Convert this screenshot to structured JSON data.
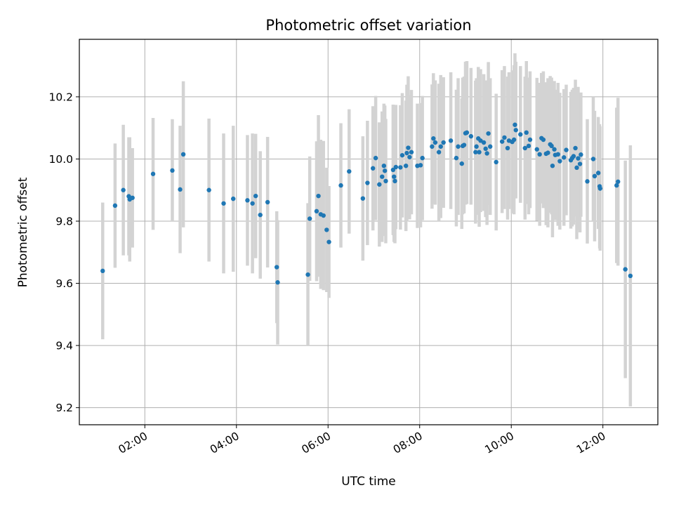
{
  "chart_data": {
    "type": "scatter",
    "title": "Photometric offset variation",
    "xlabel": "UTC time",
    "ylabel": "Photometric offset",
    "x_unit": "hours (UTC)",
    "xlim": [
      0.57,
      13.2
    ],
    "ylim": [
      9.145,
      10.385
    ],
    "xticks": [
      {
        "value": 2,
        "label": "02:00"
      },
      {
        "value": 4,
        "label": "04:00"
      },
      {
        "value": 6,
        "label": "06:00"
      },
      {
        "value": 8,
        "label": "08:00"
      },
      {
        "value": 10,
        "label": "10:00"
      },
      {
        "value": 12,
        "label": "12:00"
      }
    ],
    "yticks": [
      {
        "value": 9.2,
        "label": "9.2"
      },
      {
        "value": 9.4,
        "label": "9.4"
      },
      {
        "value": 9.6,
        "label": "9.6"
      },
      {
        "value": 9.8,
        "label": "9.8"
      },
      {
        "value": 10.0,
        "label": "10.0"
      },
      {
        "value": 10.2,
        "label": "10.2"
      }
    ],
    "grid": true,
    "colors": {
      "marker": "#1f77b4",
      "errorbar": "#d3d3d3",
      "grid": "#b0b0b0"
    },
    "points": [
      [
        1.08,
        9.64,
        0.22
      ],
      [
        1.35,
        9.85,
        0.2
      ],
      [
        1.53,
        9.9,
        0.21
      ],
      [
        1.65,
        9.88,
        0.19
      ],
      [
        1.67,
        9.87,
        0.2
      ],
      [
        1.73,
        9.875,
        0.16
      ],
      [
        2.18,
        9.952,
        0.18
      ],
      [
        2.6,
        9.963,
        0.165
      ],
      [
        2.77,
        9.902,
        0.205
      ],
      [
        2.84,
        10.015,
        0.235
      ],
      [
        3.4,
        9.9,
        0.23
      ],
      [
        3.72,
        9.857,
        0.225
      ],
      [
        3.93,
        9.872,
        0.235
      ],
      [
        4.24,
        9.867,
        0.21
      ],
      [
        4.35,
        9.857,
        0.225
      ],
      [
        4.42,
        9.881,
        0.2
      ],
      [
        4.52,
        9.82,
        0.205
      ],
      [
        4.68,
        9.861,
        0.21
      ],
      [
        4.88,
        9.652,
        0.18
      ],
      [
        4.9,
        9.603,
        0.2
      ],
      [
        5.56,
        9.628,
        0.23
      ],
      [
        5.6,
        9.808,
        0.2
      ],
      [
        5.75,
        9.832,
        0.225
      ],
      [
        5.79,
        9.881,
        0.26
      ],
      [
        5.84,
        9.822,
        0.24
      ],
      [
        5.9,
        9.818,
        0.24
      ],
      [
        5.97,
        9.772,
        0.2
      ],
      [
        6.02,
        9.733,
        0.18
      ],
      [
        6.28,
        9.915,
        0.2
      ],
      [
        6.46,
        9.96,
        0.2
      ],
      [
        6.76,
        9.873,
        0.2
      ],
      [
        6.86,
        9.923,
        0.2
      ],
      [
        6.98,
        9.97,
        0.2
      ],
      [
        7.04,
        10.003,
        0.2
      ],
      [
        7.12,
        9.918,
        0.2
      ],
      [
        7.18,
        9.943,
        0.21
      ],
      [
        7.22,
        9.978,
        0.2
      ],
      [
        7.24,
        9.962,
        0.21
      ],
      [
        7.26,
        9.929,
        0.2
      ],
      [
        7.42,
        9.965,
        0.21
      ],
      [
        7.44,
        9.943,
        0.21
      ],
      [
        7.46,
        9.929,
        0.2
      ],
      [
        7.48,
        9.974,
        0.2
      ],
      [
        7.58,
        9.973,
        0.2
      ],
      [
        7.62,
        10.012,
        0.2
      ],
      [
        7.7,
        9.978,
        0.21
      ],
      [
        7.72,
        10.019,
        0.22
      ],
      [
        7.75,
        10.036,
        0.23
      ],
      [
        7.78,
        10.006,
        0.2
      ],
      [
        7.82,
        10.022,
        0.2
      ],
      [
        7.95,
        9.978,
        0.2
      ],
      [
        8.02,
        9.98,
        0.2
      ],
      [
        8.06,
        10.003,
        0.2
      ],
      [
        8.27,
        10.04,
        0.2
      ],
      [
        8.3,
        10.066,
        0.21
      ],
      [
        8.34,
        10.053,
        0.2
      ],
      [
        8.42,
        10.022,
        0.22
      ],
      [
        8.46,
        10.04,
        0.23
      ],
      [
        8.52,
        10.053,
        0.21
      ],
      [
        8.68,
        10.059,
        0.22
      ],
      [
        8.8,
        10.003,
        0.22
      ],
      [
        8.84,
        10.04,
        0.22
      ],
      [
        8.92,
        9.985,
        0.21
      ],
      [
        8.94,
        10.042,
        0.22
      ],
      [
        8.97,
        10.045,
        0.22
      ],
      [
        9.0,
        10.083,
        0.23
      ],
      [
        9.03,
        10.085,
        0.23
      ],
      [
        9.12,
        10.073,
        0.22
      ],
      [
        9.22,
        10.022,
        0.23
      ],
      [
        9.24,
        10.04,
        0.22
      ],
      [
        9.28,
        10.066,
        0.23
      ],
      [
        9.3,
        10.022,
        0.24
      ],
      [
        9.33,
        10.059,
        0.23
      ],
      [
        9.4,
        10.053,
        0.22
      ],
      [
        9.44,
        10.033,
        0.22
      ],
      [
        9.47,
        10.018,
        0.23
      ],
      [
        9.5,
        10.082,
        0.23
      ],
      [
        9.54,
        10.04,
        0.22
      ],
      [
        9.67,
        9.99,
        0.22
      ],
      [
        9.8,
        10.056,
        0.23
      ],
      [
        9.85,
        10.069,
        0.23
      ],
      [
        9.92,
        10.035,
        0.23
      ],
      [
        9.95,
        10.059,
        0.22
      ],
      [
        10.02,
        10.055,
        0.23
      ],
      [
        10.06,
        10.062,
        0.24
      ],
      [
        10.08,
        10.11,
        0.23
      ],
      [
        10.1,
        10.093,
        0.22
      ],
      [
        10.2,
        10.079,
        0.22
      ],
      [
        10.3,
        10.035,
        0.23
      ],
      [
        10.33,
        10.085,
        0.23
      ],
      [
        10.38,
        10.042,
        0.22
      ],
      [
        10.41,
        10.062,
        0.22
      ],
      [
        10.56,
        10.031,
        0.23
      ],
      [
        10.62,
        10.015,
        0.23
      ],
      [
        10.66,
        10.067,
        0.21
      ],
      [
        10.7,
        10.062,
        0.22
      ],
      [
        10.76,
        10.017,
        0.23
      ],
      [
        10.8,
        10.02,
        0.24
      ],
      [
        10.85,
        10.047,
        0.22
      ],
      [
        10.88,
        10.042,
        0.22
      ],
      [
        10.9,
        9.978,
        0.23
      ],
      [
        10.94,
        10.031,
        0.22
      ],
      [
        10.96,
        10.013,
        0.21
      ],
      [
        11.02,
        10.015,
        0.23
      ],
      [
        11.06,
        9.993,
        0.22
      ],
      [
        11.15,
        10.005,
        0.22
      ],
      [
        11.2,
        10.029,
        0.21
      ],
      [
        11.3,
        9.996,
        0.22
      ],
      [
        11.33,
        10.003,
        0.22
      ],
      [
        11.36,
        10.009,
        0.22
      ],
      [
        11.4,
        10.035,
        0.22
      ],
      [
        11.43,
        9.972,
        0.23
      ],
      [
        11.46,
        10.002,
        0.23
      ],
      [
        11.5,
        9.984,
        0.22
      ],
      [
        11.52,
        10.014,
        0.2
      ],
      [
        11.66,
        9.928,
        0.2
      ],
      [
        11.79,
        10.0,
        0.2
      ],
      [
        11.82,
        9.945,
        0.21
      ],
      [
        11.9,
        9.955,
        0.18
      ],
      [
        11.93,
        9.912,
        0.2
      ],
      [
        11.94,
        9.905,
        0.2
      ],
      [
        12.3,
        9.915,
        0.25
      ],
      [
        12.33,
        9.927,
        0.27
      ],
      [
        12.49,
        9.645,
        0.35
      ],
      [
        12.6,
        9.624,
        0.42
      ]
    ]
  }
}
